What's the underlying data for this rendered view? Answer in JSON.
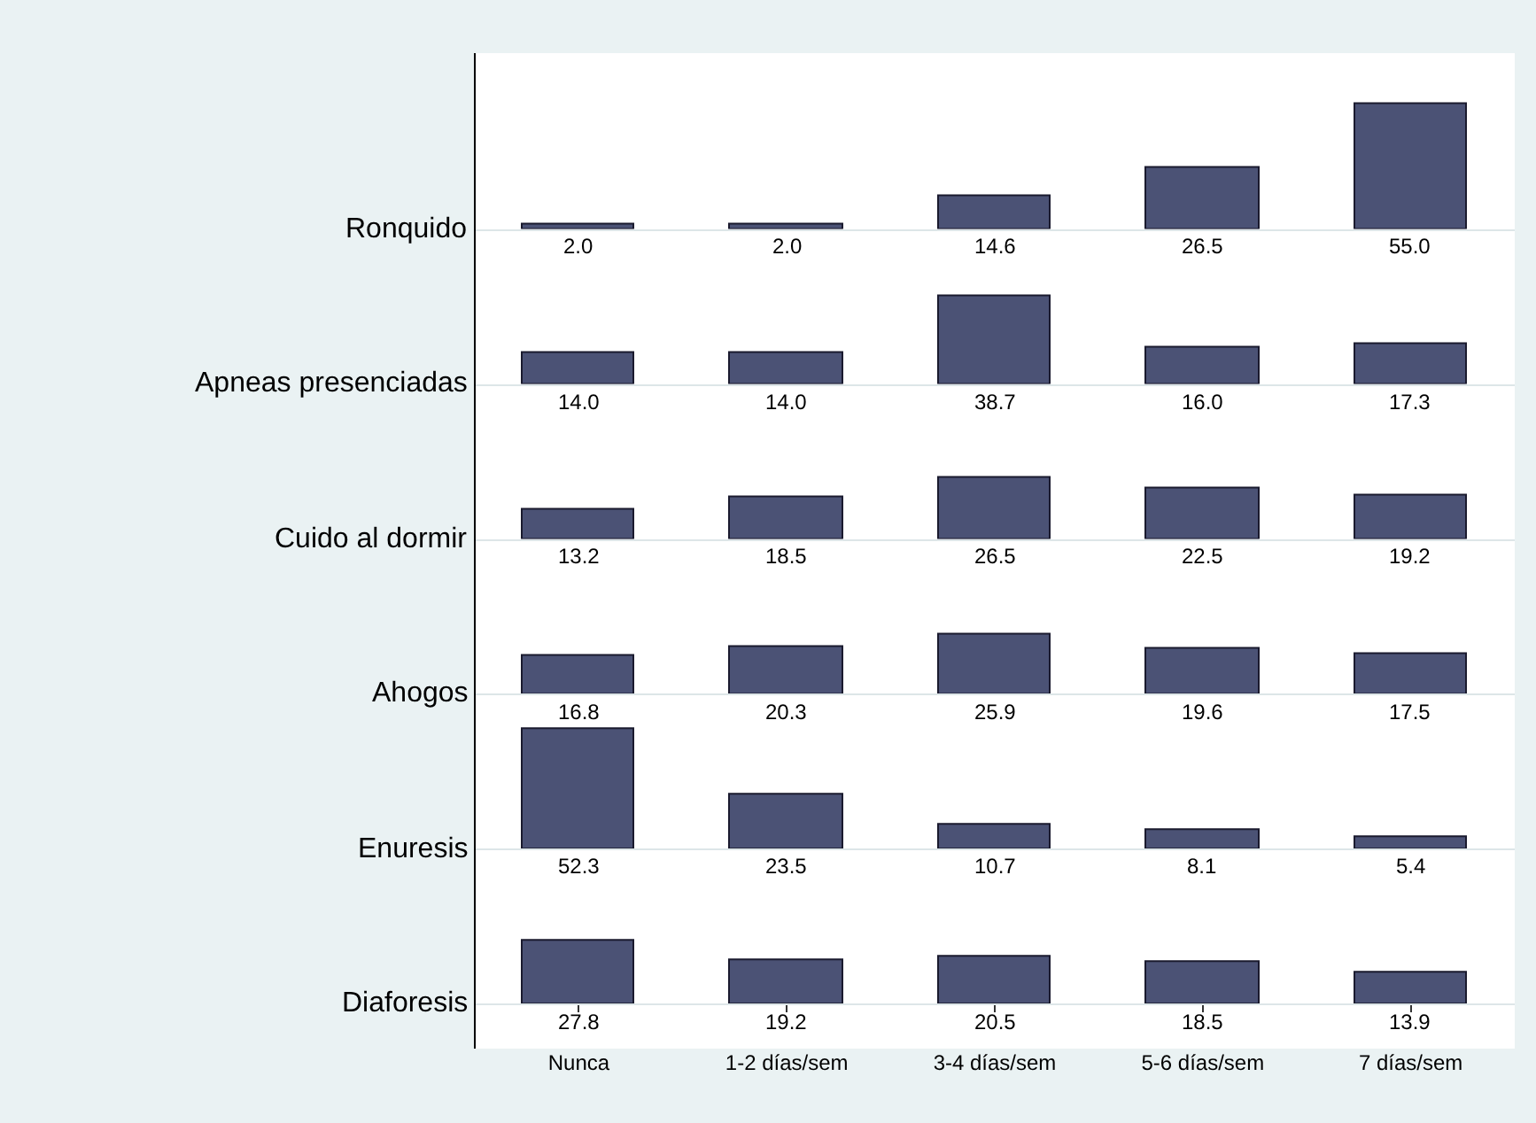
{
  "chart_data": [
    {
      "type": "bar",
      "ylabel": "Ronquido",
      "categories": [
        null,
        null,
        null,
        null,
        null
      ],
      "values": [
        2.0,
        2.0,
        14.6,
        26.5,
        55.0
      ],
      "value_labels": [
        "2.0",
        "2.0",
        "14.6",
        "26.5",
        "55.0"
      ],
      "color": "#4b5275",
      "tick_labels": false
    },
    {
      "type": "bar",
      "ylabel": "Apneas presenciadas",
      "categories": [
        null,
        null,
        null,
        null,
        null
      ],
      "values": [
        14.0,
        14.0,
        38.7,
        16.0,
        17.3
      ],
      "value_labels": [
        "14.0",
        "14.0",
        "38.7",
        "16.0",
        "17.3"
      ],
      "color": "#4b5275",
      "tick_labels": false
    },
    {
      "type": "bar",
      "ylabel": "Cuido al dormir",
      "categories": [
        null,
        null,
        null,
        null,
        null
      ],
      "values": [
        13.2,
        18.5,
        26.5,
        22.5,
        19.2
      ],
      "value_labels": [
        "13.2",
        "18.5",
        "26.5",
        "22.5",
        "19.2"
      ],
      "color": "#4b5275",
      "tick_labels": false
    },
    {
      "type": "bar",
      "ylabel": "Ahogos",
      "categories": [
        null,
        null,
        null,
        null,
        null
      ],
      "values": [
        16.8,
        20.3,
        25.9,
        19.6,
        17.5
      ],
      "value_labels": [
        "16.8",
        "20.3",
        "25.9",
        "19.6",
        "17.5"
      ],
      "color": "#4b5275",
      "tick_labels": false
    },
    {
      "type": "bar",
      "ylabel": "Enuresis",
      "categories": [
        null,
        null,
        null,
        null,
        null
      ],
      "values": [
        52.3,
        23.5,
        10.7,
        8.1,
        5.4
      ],
      "value_labels": [
        "52.3",
        "23.5",
        "10.7",
        "8.1",
        "5.4"
      ],
      "color": "#4b5275",
      "tick_labels": false
    },
    {
      "type": "bar",
      "ylabel": "Diaforesis",
      "categories": [
        "Nunca",
        "1-2 días/sem",
        "3-4 días/sem",
        "5-6 días/sem",
        "7 días/sem"
      ],
      "values": [
        27.8,
        19.2,
        20.5,
        18.5,
        13.9
      ],
      "value_labels": [
        "27.8",
        "19.2",
        "20.5",
        "18.5",
        "13.9"
      ],
      "color": "#4b5275",
      "tick_labels": "x"
    }
  ]
}
